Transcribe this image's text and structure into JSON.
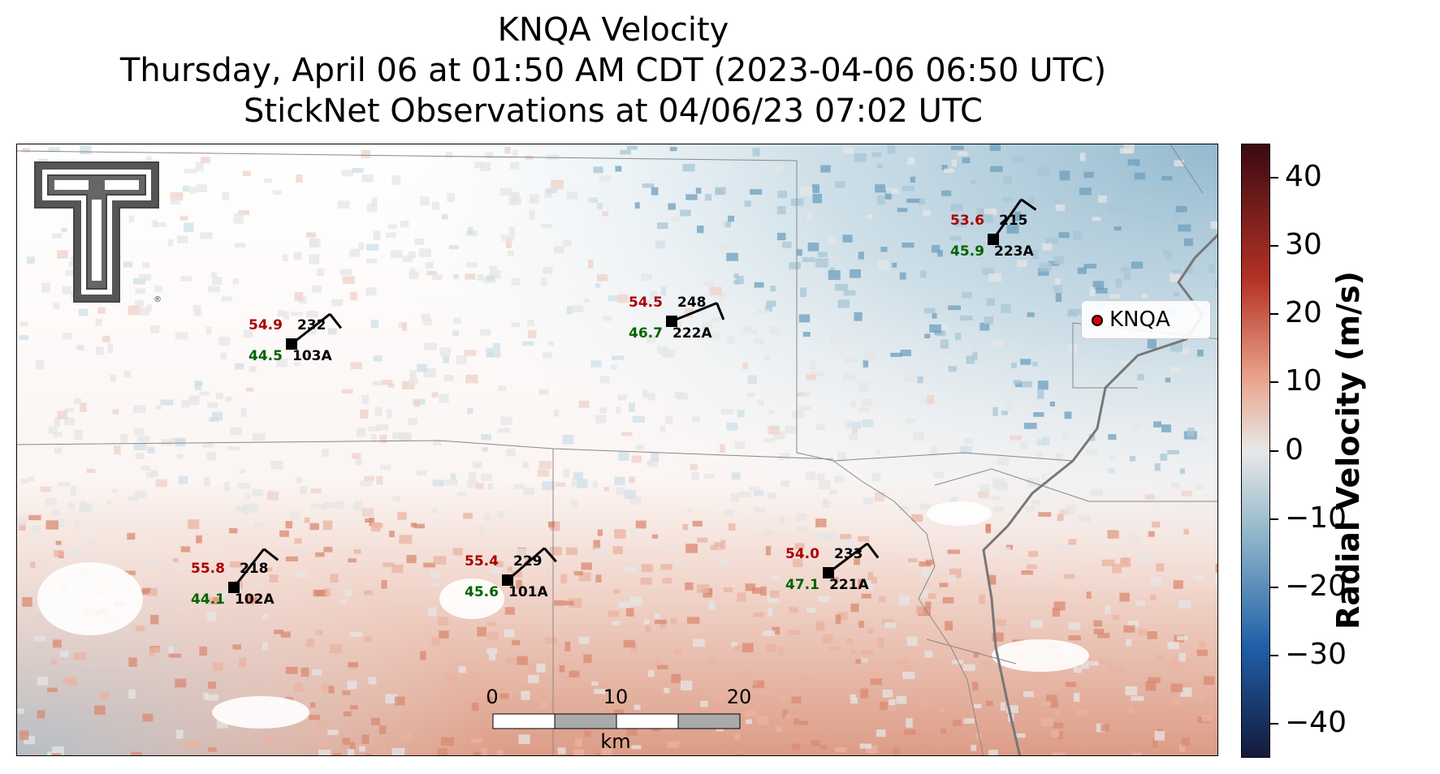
{
  "title": {
    "line1": "KNQA Velocity",
    "line2": "Thursday, April 06 at 01:50 AM CDT (2023-04-06 06:50 UTC)",
    "line3": "StickNet Observations at 04/06/23 07:02 UTC"
  },
  "legend": {
    "marker_color": "#e00000",
    "label": "KNQA"
  },
  "colorbar": {
    "title": "Radial Velocity (m/s)",
    "ticks": [
      "40",
      "30",
      "20",
      "10",
      "0",
      "−10",
      "−20",
      "−30",
      "−40"
    ],
    "range": [
      -45,
      45
    ],
    "colors": {
      "max": "#3a0a12",
      "high": "#b43226",
      "mid_high": "#e9a28a",
      "zero": "#e8e8e8",
      "mid_low": "#8fb5c8",
      "low": "#1f5fa8",
      "min": "#141a3a"
    }
  },
  "logo": {
    "icon": "texas-tech-double-t-logo"
  },
  "stations": [
    {
      "id": "103A",
      "temp": "54.9",
      "dewpoint": "44.5",
      "wind_dir": "232"
    },
    {
      "id": "222A",
      "temp": "54.5",
      "dewpoint": "46.7",
      "wind_dir": "248"
    },
    {
      "id": "223A",
      "temp": "53.6",
      "dewpoint": "45.9",
      "wind_dir": "215"
    },
    {
      "id": "102A",
      "temp": "55.8",
      "dewpoint": "44.1",
      "wind_dir": "218"
    },
    {
      "id": "101A",
      "temp": "55.4",
      "dewpoint": "45.6",
      "wind_dir": "229"
    },
    {
      "id": "221A",
      "temp": "54.0",
      "dewpoint": "47.1",
      "wind_dir": "233"
    }
  ],
  "scalebar": {
    "labels": [
      "0",
      "10",
      "20"
    ],
    "unit": "km"
  },
  "colors": {
    "temp_text": "#aa0000",
    "dewpoint_text": "#006400"
  }
}
